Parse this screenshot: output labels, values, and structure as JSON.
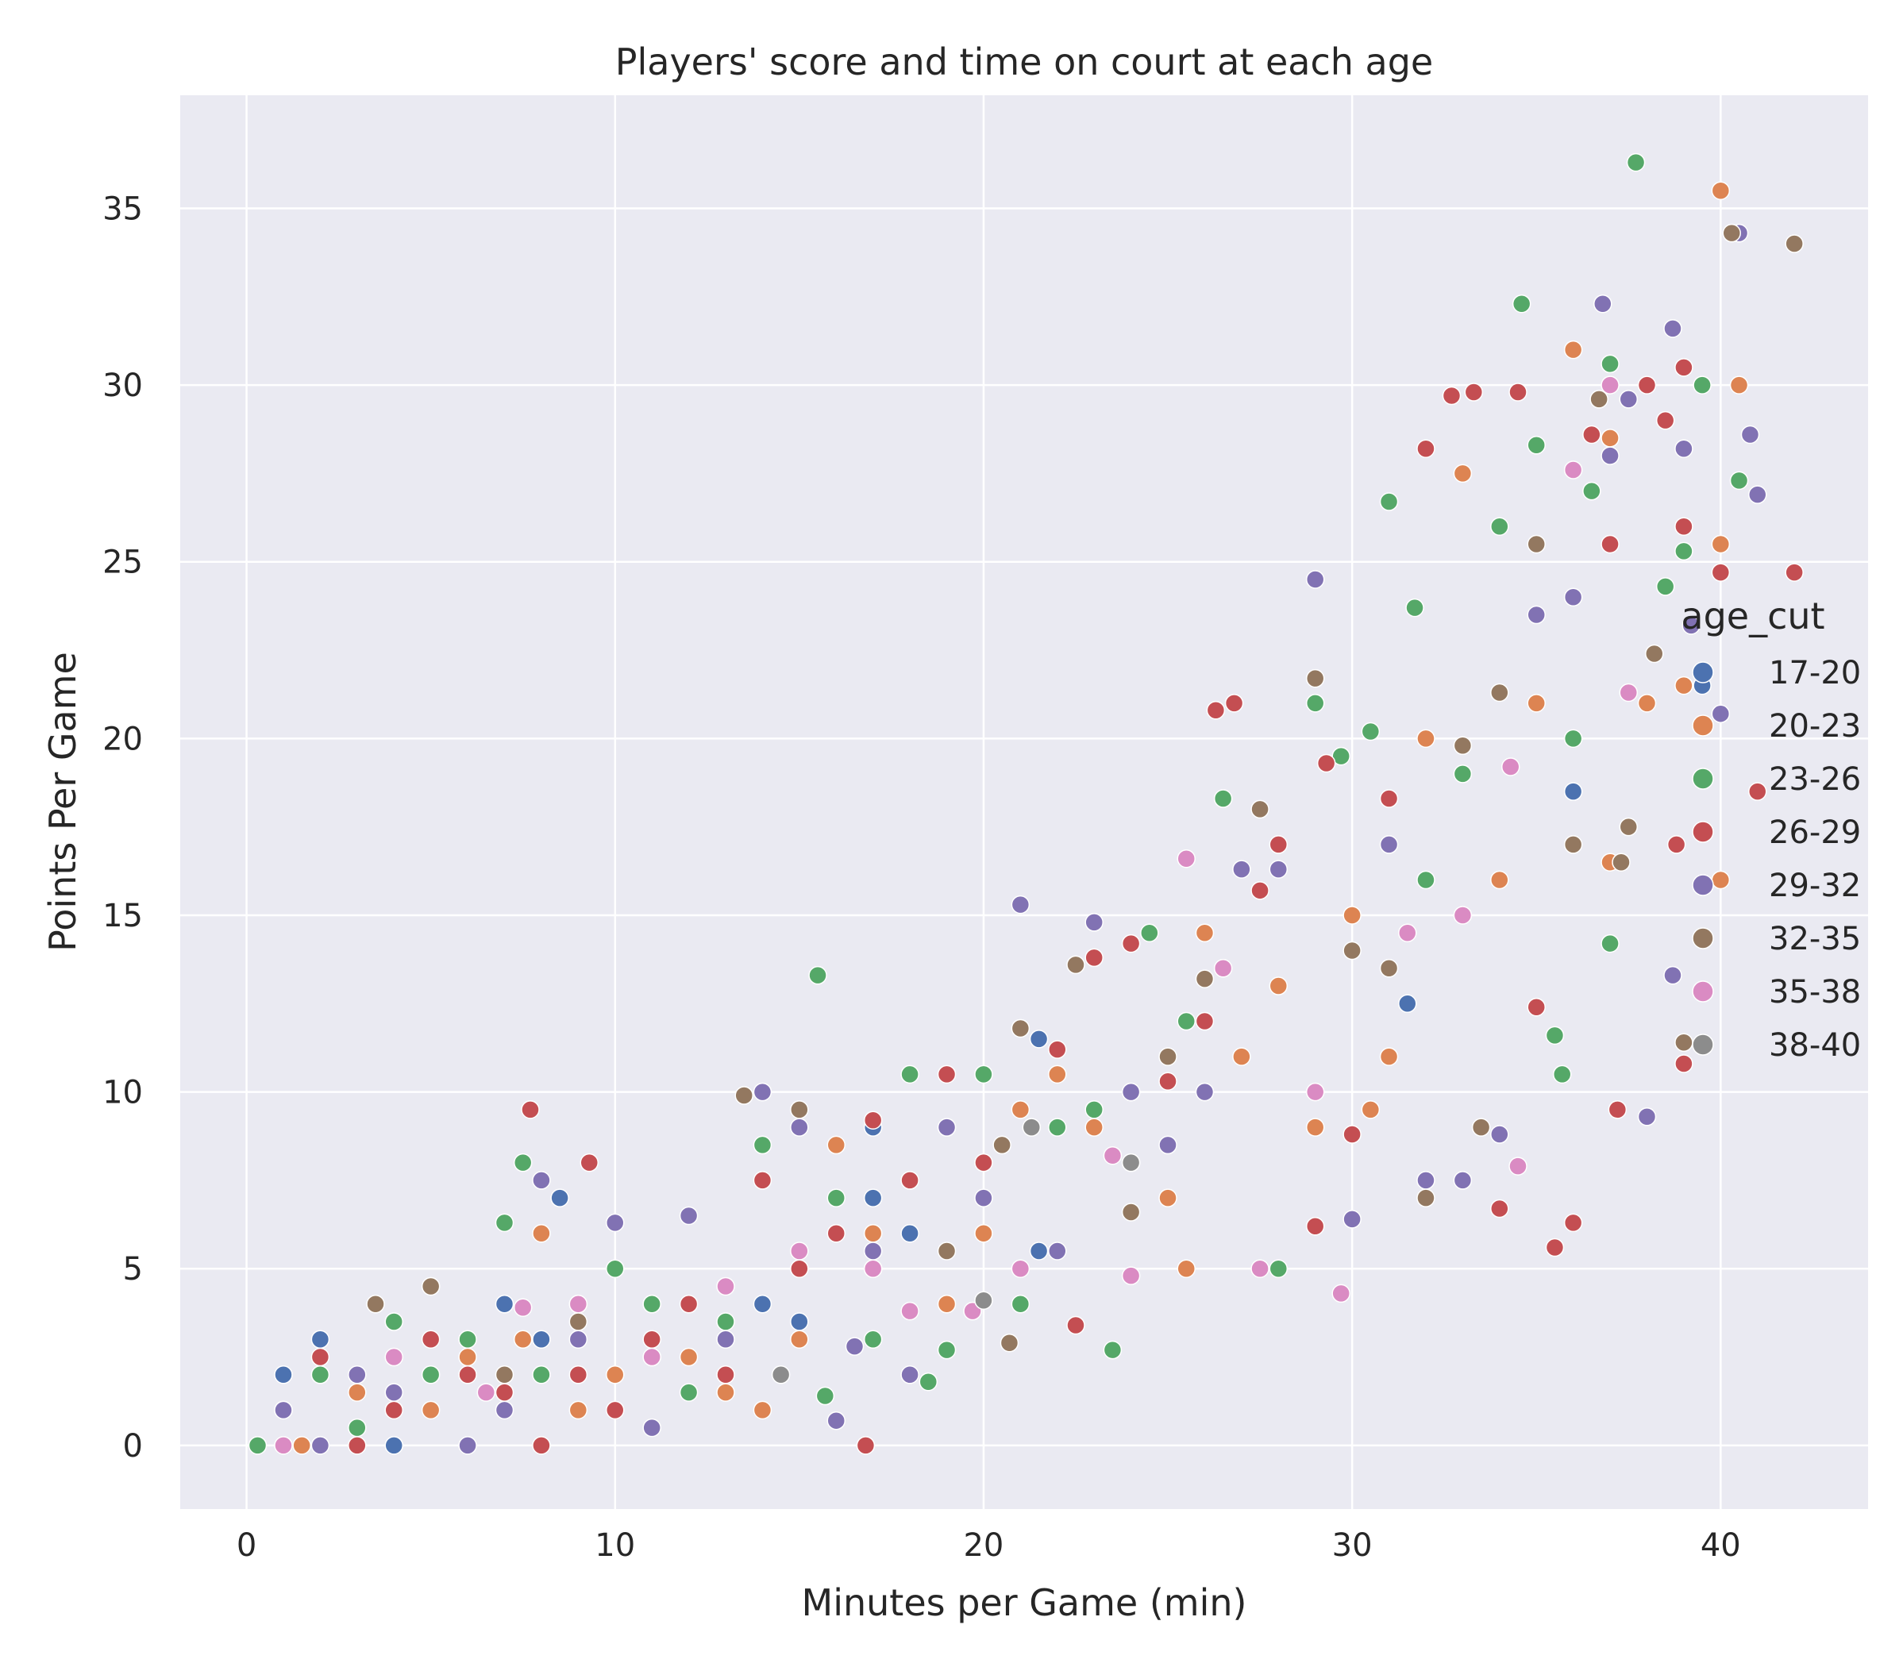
{
  "chart_data": {
    "type": "scatter",
    "title": "Players' score and time on court at each age",
    "xlabel": "Minutes per Game (min)",
    "ylabel": "Points Per Game",
    "xlim": [
      -1.8,
      44
    ],
    "ylim": [
      -1.8,
      38.2
    ],
    "xticks": [
      0,
      10,
      20,
      30,
      40
    ],
    "yticks": [
      0,
      5,
      10,
      15,
      20,
      25,
      30,
      35
    ],
    "grid": true,
    "background": "#EAEAF2",
    "legend": {
      "title": "age_cut",
      "position": "right"
    },
    "series": [
      {
        "name": "17-20",
        "color": "#4C72B0",
        "points": [
          [
            1,
            2
          ],
          [
            2,
            3
          ],
          [
            2,
            2
          ],
          [
            4,
            0
          ],
          [
            8,
            3
          ],
          [
            8.5,
            7
          ],
          [
            14,
            4
          ],
          [
            15,
            3.5
          ],
          [
            17,
            9
          ],
          [
            17,
            7
          ],
          [
            18,
            6
          ],
          [
            19,
            9
          ],
          [
            21.5,
            11.5
          ],
          [
            21.5,
            5.5
          ],
          [
            24,
            8
          ],
          [
            31.5,
            12.5
          ],
          [
            36,
            18.5
          ],
          [
            39.5,
            21.5
          ],
          [
            7,
            4
          ]
        ]
      },
      {
        "name": "20-23",
        "color": "#DD8452",
        "points": [
          [
            1.5,
            0
          ],
          [
            3,
            1.5
          ],
          [
            5,
            1
          ],
          [
            6,
            2.5
          ],
          [
            7.5,
            3
          ],
          [
            8,
            6
          ],
          [
            9,
            1
          ],
          [
            10,
            2
          ],
          [
            11,
            4
          ],
          [
            12,
            2.5
          ],
          [
            13,
            1.5
          ],
          [
            14,
            1
          ],
          [
            15,
            3
          ],
          [
            16,
            8.5
          ],
          [
            17,
            6
          ],
          [
            18,
            7.5
          ],
          [
            19,
            4
          ],
          [
            20,
            6
          ],
          [
            21,
            9.5
          ],
          [
            22,
            10.5
          ],
          [
            23,
            9
          ],
          [
            24,
            10
          ],
          [
            25,
            7
          ],
          [
            25.5,
            5
          ],
          [
            26,
            14.5
          ],
          [
            27,
            11
          ],
          [
            28,
            13
          ],
          [
            29,
            9
          ],
          [
            30,
            15
          ],
          [
            31,
            11
          ],
          [
            32,
            20
          ],
          [
            33,
            27.5
          ],
          [
            34,
            16
          ],
          [
            35,
            21
          ],
          [
            36,
            31
          ],
          [
            37,
            28.5
          ],
          [
            38,
            21
          ],
          [
            39,
            21.5
          ],
          [
            40,
            35.5
          ],
          [
            40.5,
            30
          ],
          [
            40,
            25.5
          ],
          [
            40,
            16
          ],
          [
            30.5,
            9.5
          ],
          [
            37,
            16.5
          ]
        ]
      },
      {
        "name": "23-26",
        "color": "#55A868",
        "points": [
          [
            0.3,
            0
          ],
          [
            1,
            1
          ],
          [
            2,
            2
          ],
          [
            3,
            0.5
          ],
          [
            4,
            3.5
          ],
          [
            5,
            2
          ],
          [
            6,
            3
          ],
          [
            7,
            6.3
          ],
          [
            7.5,
            8
          ],
          [
            8,
            2
          ],
          [
            9,
            4
          ],
          [
            10,
            5
          ],
          [
            11,
            4
          ],
          [
            12,
            1.5
          ],
          [
            13,
            3.5
          ],
          [
            14,
            8.5
          ],
          [
            15,
            5
          ],
          [
            15.5,
            13.3
          ],
          [
            15.7,
            1.4
          ],
          [
            16,
            7
          ],
          [
            17,
            3
          ],
          [
            18,
            10.5
          ],
          [
            18.5,
            1.8
          ],
          [
            19,
            2.7
          ],
          [
            20,
            10.5
          ],
          [
            21,
            4
          ],
          [
            22,
            9
          ],
          [
            23,
            9.5
          ],
          [
            23.5,
            2.7
          ],
          [
            24.5,
            14.5
          ],
          [
            25.5,
            12
          ],
          [
            26.5,
            18.3
          ],
          [
            28,
            5
          ],
          [
            29,
            21
          ],
          [
            29.7,
            19.5
          ],
          [
            30.5,
            20.2
          ],
          [
            31,
            26.7
          ],
          [
            31.7,
            23.7
          ],
          [
            32,
            16
          ],
          [
            33,
            19
          ],
          [
            34,
            26
          ],
          [
            34.6,
            32.3
          ],
          [
            35,
            28.3
          ],
          [
            35.5,
            11.6
          ],
          [
            36,
            20
          ],
          [
            36.5,
            27
          ],
          [
            37,
            30.6
          ],
          [
            37,
            14.2
          ],
          [
            37.7,
            36.3
          ],
          [
            38.5,
            24.3
          ],
          [
            39,
            25.3
          ],
          [
            39.5,
            30
          ],
          [
            40.5,
            27.3
          ],
          [
            35.7,
            10.5
          ]
        ]
      },
      {
        "name": "26-29",
        "color": "#C44E52",
        "points": [
          [
            2,
            2.5
          ],
          [
            3,
            0
          ],
          [
            4,
            1
          ],
          [
            5,
            3
          ],
          [
            6,
            2
          ],
          [
            7,
            1.5
          ],
          [
            7.7,
            9.5
          ],
          [
            8,
            0
          ],
          [
            9,
            2
          ],
          [
            9.3,
            8
          ],
          [
            10,
            1
          ],
          [
            11,
            3
          ],
          [
            12,
            4
          ],
          [
            13,
            2
          ],
          [
            14,
            7.5
          ],
          [
            15,
            5
          ],
          [
            16,
            6
          ],
          [
            16.8,
            0
          ],
          [
            17,
            9.2
          ],
          [
            18,
            7.5
          ],
          [
            19,
            10.5
          ],
          [
            20,
            8
          ],
          [
            21,
            11.8
          ],
          [
            22,
            11.2
          ],
          [
            22.5,
            3.4
          ],
          [
            23,
            13.8
          ],
          [
            24,
            14.2
          ],
          [
            25,
            10.3
          ],
          [
            26,
            12
          ],
          [
            26.3,
            20.8
          ],
          [
            26.8,
            21
          ],
          [
            27.5,
            15.7
          ],
          [
            28,
            17
          ],
          [
            29,
            6.2
          ],
          [
            30,
            8.8
          ],
          [
            31,
            18.3
          ],
          [
            32,
            28.2
          ],
          [
            32.7,
            29.7
          ],
          [
            33.3,
            29.8
          ],
          [
            34,
            6.7
          ],
          [
            34.5,
            29.8
          ],
          [
            35,
            12.4
          ],
          [
            35.5,
            5.6
          ],
          [
            36,
            6.3
          ],
          [
            36.5,
            28.6
          ],
          [
            37,
            25.5
          ],
          [
            37.2,
            9.5
          ],
          [
            38,
            30
          ],
          [
            38.5,
            29
          ],
          [
            39,
            30.5
          ],
          [
            39,
            26
          ],
          [
            38.8,
            17
          ],
          [
            39,
            10.8
          ],
          [
            40,
            24.7
          ],
          [
            41,
            18.5
          ],
          [
            42,
            24.7
          ],
          [
            29.3,
            19.3
          ]
        ]
      },
      {
        "name": "29-32",
        "color": "#8172B3",
        "points": [
          [
            1,
            1
          ],
          [
            2,
            0
          ],
          [
            3,
            2
          ],
          [
            4,
            1.5
          ],
          [
            5,
            4.5
          ],
          [
            6,
            0
          ],
          [
            7,
            1
          ],
          [
            8,
            7.5
          ],
          [
            9,
            3
          ],
          [
            10,
            6.3
          ],
          [
            11,
            0.5
          ],
          [
            12,
            6.5
          ],
          [
            13,
            3
          ],
          [
            14,
            10
          ],
          [
            15,
            9
          ],
          [
            16,
            0.7
          ],
          [
            16.5,
            2.8
          ],
          [
            17,
            5.5
          ],
          [
            18,
            2
          ],
          [
            19,
            9
          ],
          [
            20,
            7
          ],
          [
            21,
            15.3
          ],
          [
            22,
            5.5
          ],
          [
            23,
            14.8
          ],
          [
            24,
            10
          ],
          [
            25,
            8.5
          ],
          [
            26,
            10
          ],
          [
            27,
            16.3
          ],
          [
            28,
            16.3
          ],
          [
            29,
            24.5
          ],
          [
            30,
            6.4
          ],
          [
            31,
            17
          ],
          [
            32,
            7.5
          ],
          [
            33,
            7.5
          ],
          [
            34,
            8.8
          ],
          [
            35,
            23.5
          ],
          [
            36,
            24
          ],
          [
            36.8,
            32.3
          ],
          [
            37,
            28
          ],
          [
            37.5,
            29.6
          ],
          [
            38,
            9.3
          ],
          [
            38.7,
            31.6
          ],
          [
            39,
            28.2
          ],
          [
            40,
            20.7
          ],
          [
            40.5,
            34.3
          ],
          [
            41,
            26.9
          ],
          [
            40.8,
            28.6
          ],
          [
            39.2,
            23.2
          ],
          [
            38.7,
            13.3
          ]
        ]
      },
      {
        "name": "32-35",
        "color": "#937860",
        "points": [
          [
            3.5,
            4
          ],
          [
            5,
            4.5
          ],
          [
            7,
            2
          ],
          [
            9,
            3.5
          ],
          [
            11,
            2.5
          ],
          [
            13.5,
            9.9
          ],
          [
            15,
            9.5
          ],
          [
            17,
            5
          ],
          [
            19,
            5.5
          ],
          [
            20.5,
            8.5
          ],
          [
            21,
            11.8
          ],
          [
            22.5,
            13.6
          ],
          [
            24,
            6.6
          ],
          [
            25,
            11
          ],
          [
            26,
            13.2
          ],
          [
            27.5,
            18
          ],
          [
            29,
            21.7
          ],
          [
            30,
            14
          ],
          [
            31,
            13.5
          ],
          [
            32,
            7
          ],
          [
            33,
            19.8
          ],
          [
            33.5,
            9
          ],
          [
            34,
            21.3
          ],
          [
            35,
            25.5
          ],
          [
            36,
            17
          ],
          [
            36.7,
            29.6
          ],
          [
            37.3,
            16.5
          ],
          [
            37.5,
            17.5
          ],
          [
            38.2,
            22.4
          ],
          [
            39,
            11.4
          ],
          [
            40.3,
            34.3
          ],
          [
            42,
            34
          ],
          [
            20.7,
            2.9
          ]
        ]
      },
      {
        "name": "35-38",
        "color": "#DA8BC3",
        "points": [
          [
            1,
            0
          ],
          [
            4,
            2.5
          ],
          [
            6.5,
            1.5
          ],
          [
            7.5,
            3.9
          ],
          [
            9,
            4
          ],
          [
            11,
            2.5
          ],
          [
            13,
            4.5
          ],
          [
            15,
            5.5
          ],
          [
            17,
            5
          ],
          [
            18,
            3.8
          ],
          [
            19.7,
            3.8
          ],
          [
            21,
            5
          ],
          [
            23.5,
            8.2
          ],
          [
            24,
            4.8
          ],
          [
            25.5,
            16.6
          ],
          [
            26.5,
            13.5
          ],
          [
            27.5,
            5
          ],
          [
            29,
            10
          ],
          [
            29.7,
            4.3
          ],
          [
            31.5,
            14.5
          ],
          [
            33,
            15
          ],
          [
            34.5,
            7.9
          ],
          [
            36,
            27.6
          ],
          [
            37,
            30
          ],
          [
            37.5,
            21.3
          ],
          [
            34.3,
            19.2
          ]
        ]
      },
      {
        "name": "38-40",
        "color": "#8C8C8C",
        "points": [
          [
            14.5,
            2
          ],
          [
            20,
            4.1
          ],
          [
            21.3,
            9
          ],
          [
            24,
            8
          ]
        ]
      }
    ]
  }
}
